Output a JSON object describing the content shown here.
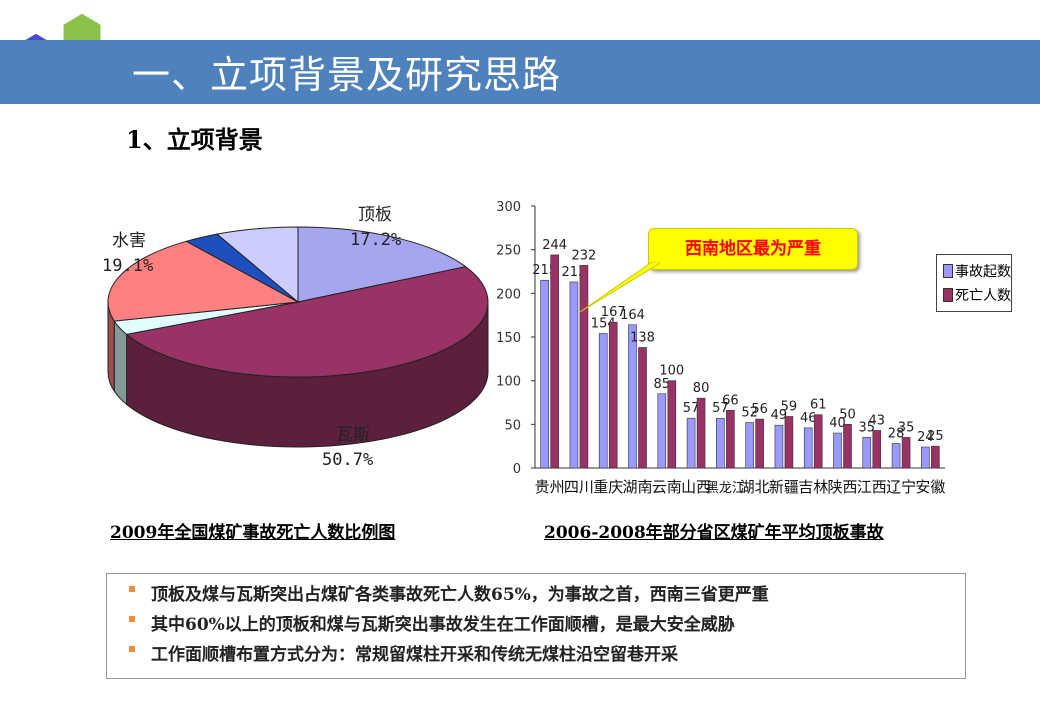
{
  "header": {
    "title": "一、立项背景及研究思路"
  },
  "section": {
    "subtitle": "1、立项背景"
  },
  "pie": {
    "caption": "2009年全国煤矿事故死亡人数比例图",
    "labels": {
      "roof_name": "顶板",
      "roof_pct": "17.2%",
      "water_name": "水害",
      "water_pct": "19.1%",
      "gas_name": "瓦斯",
      "gas_pct": "50.7%"
    }
  },
  "callout": "西南地区最为严重",
  "chart_data": [
    {
      "type": "pie",
      "title": "2009年全国煤矿事故死亡人数比例图",
      "slices": [
        {
          "label": "顶板",
          "value": 17.2,
          "color": "#a6a6f0"
        },
        {
          "label": "瓦斯",
          "value": 50.7,
          "color": "#993366"
        },
        {
          "label": "",
          "value": 3.0,
          "color": "#e0ffff"
        },
        {
          "label": "水害",
          "value": 19.1,
          "color": "#ff8080"
        },
        {
          "label": "",
          "value": 3.0,
          "color": "#1d4fbf"
        },
        {
          "label": "",
          "value": 7.0,
          "color": "#ccccff"
        }
      ]
    },
    {
      "type": "bar",
      "title": "2006-2008年部分省区煤矿年平均顶板事故",
      "categories": [
        "贵州",
        "四川",
        "重庆",
        "湖南",
        "云南",
        "山西",
        "黑龙江",
        "湖北",
        "新疆",
        "吉林",
        "陕西",
        "江西",
        "辽宁",
        "安徽"
      ],
      "series": [
        {
          "name": "事故起数",
          "color": "#9999ff",
          "values": [
            215,
            213,
            154,
            164,
            85,
            57,
            57,
            52,
            49,
            46,
            40,
            35,
            28,
            24
          ]
        },
        {
          "name": "死亡人数",
          "color": "#993366",
          "values": [
            244,
            232,
            167,
            138,
            100,
            80,
            66,
            56,
            59,
            61,
            50,
            43,
            35,
            25
          ]
        }
      ],
      "data_labels": [
        [
          "215",
          "244"
        ],
        [
          "213",
          "232"
        ],
        [
          "154",
          "167"
        ],
        [
          "164",
          "138"
        ],
        [
          "85",
          "100"
        ],
        [
          "57",
          "80"
        ],
        [
          "57",
          "66"
        ],
        [
          "52",
          "56"
        ],
        [
          "49",
          "59"
        ],
        [
          "46",
          "61"
        ],
        [
          "40",
          "50"
        ],
        [
          "35",
          "43"
        ],
        [
          "28",
          "35"
        ],
        [
          "24",
          "25"
        ]
      ],
      "ylim": [
        0,
        300
      ],
      "yticks": [
        0,
        50,
        100,
        150,
        200,
        250,
        300
      ],
      "legend": "right"
    }
  ],
  "bar": {
    "caption": "2006-2008年部分省区煤矿年平均顶板事故"
  },
  "notes": [
    "顶板及煤与瓦斯突出占煤矿各类事故死亡人数65%，为事故之首，西南三省更严重",
    "其中60%以上的顶板和煤与瓦斯突出事故发生在工作面顺槽，是最大安全威胁",
    "工作面顺槽布置方式分为：常规留煤柱开采和传统无煤柱沿空留巷开采"
  ]
}
